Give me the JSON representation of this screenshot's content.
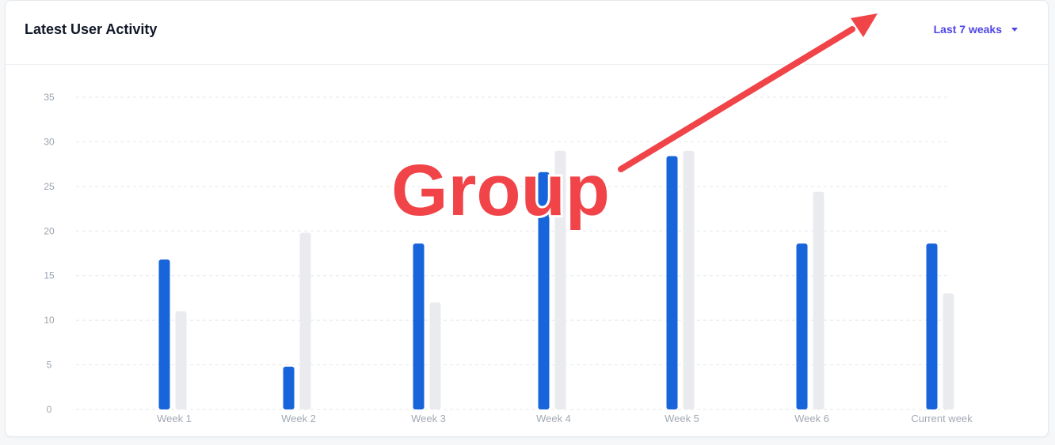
{
  "card": {
    "title": "Latest User Activity",
    "range_label": "Last 7 weaks"
  },
  "annotation": {
    "label": "Group",
    "color": "#f04448"
  },
  "chart_data": {
    "type": "bar",
    "categories": [
      "Week 1",
      "Week 2",
      "Week 3",
      "Week 4",
      "Week 5",
      "Week 6",
      "Current week"
    ],
    "series": [
      {
        "color": "#1764db",
        "values": [
          16.8,
          4.8,
          18.6,
          26.6,
          28.4,
          18.6,
          18.6
        ]
      },
      {
        "color": "#e9ebef",
        "values": [
          11.0,
          19.8,
          12.0,
          29.0,
          29.0,
          24.4,
          13.0
        ]
      }
    ],
    "yticks": [
      0,
      5,
      10,
      15,
      20,
      25,
      30,
      35
    ],
    "ylim": [
      0,
      35
    ],
    "grid": true,
    "title": "",
    "xlabel": "",
    "ylabel": ""
  }
}
